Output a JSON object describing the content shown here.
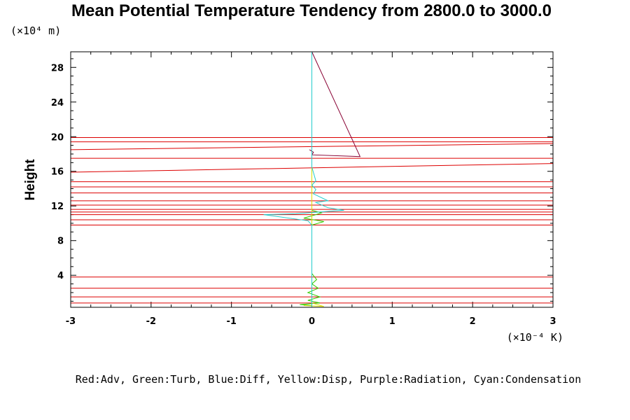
{
  "chart_data": {
    "type": "line",
    "title": "Mean Potential Temperature Tendency from 2800.0 to 3000.0",
    "ylabel": "Height",
    "xunit": "(×10⁻⁴ K)",
    "yunit": "(×10⁴ m)",
    "xlim": [
      -3,
      3
    ],
    "ylim": [
      0.3,
      29.8
    ],
    "xticks": [
      "-3",
      "-2",
      "-1",
      "0",
      "1",
      "2",
      "3"
    ],
    "yticks": [
      "4",
      "8",
      "12",
      "16",
      "20",
      "24",
      "28"
    ],
    "grid": false,
    "legend_text": "Red:Adv, Green:Turb, Blue:Diff, Yellow:Disp, Purple:Radiation, Cyan:Condensation",
    "colors": {
      "red": "#dd0000",
      "green": "#33cc00",
      "blue": "#0000cc",
      "yellow": "#dddd00",
      "purple": "#880033",
      "cyan": "#22cccc"
    },
    "series": [
      {
        "name": "Adv",
        "color": "red",
        "points": [
          [
            -3,
            0.8
          ],
          [
            3,
            0.8
          ],
          [
            -3,
            1.5
          ],
          [
            3,
            1.5
          ],
          [
            -3,
            2.5
          ],
          [
            3,
            2.5
          ],
          [
            -3,
            3.8
          ],
          [
            3,
            3.8
          ],
          [
            -3,
            9.8
          ],
          [
            3,
            9.8
          ],
          [
            -3,
            10.4
          ],
          [
            3,
            10.4
          ],
          [
            -3,
            11.0
          ],
          [
            3,
            11.0
          ],
          [
            -3,
            11.3
          ],
          [
            3,
            11.3
          ],
          [
            -3,
            11.6
          ],
          [
            3,
            11.6
          ],
          [
            -3,
            12.1
          ],
          [
            3,
            12.1
          ],
          [
            -3,
            12.6
          ],
          [
            3,
            12.6
          ],
          [
            -3,
            13.5
          ],
          [
            3,
            13.5
          ],
          [
            -3,
            14.2
          ],
          [
            3,
            14.2
          ],
          [
            -3,
            14.8
          ],
          [
            3,
            14.8
          ],
          [
            -3,
            15.9
          ],
          [
            3,
            16.9
          ],
          [
            -3,
            17.5
          ],
          [
            3,
            17.5
          ],
          [
            -3,
            18.5
          ],
          [
            3,
            19.2
          ],
          [
            -3,
            19.4
          ],
          [
            3,
            19.4
          ],
          [
            -3,
            19.9
          ],
          [
            3,
            19.9
          ]
        ]
      },
      {
        "name": "Turb",
        "color": "green",
        "points": [
          [
            0,
            0.5
          ],
          [
            -0.15,
            0.6
          ],
          [
            0.1,
            0.8
          ],
          [
            -0.05,
            1.1
          ],
          [
            0.1,
            1.5
          ],
          [
            -0.05,
            2.0
          ],
          [
            0.08,
            2.5
          ],
          [
            0,
            3.0
          ],
          [
            0.06,
            3.5
          ],
          [
            0,
            4.2
          ],
          [
            0,
            9.8
          ],
          [
            0.15,
            10.2
          ],
          [
            -0.1,
            10.6
          ],
          [
            0.05,
            11.0
          ],
          [
            0.12,
            11.2
          ],
          [
            0,
            11.5
          ],
          [
            0,
            29.8
          ]
        ]
      },
      {
        "name": "Diff",
        "color": "blue",
        "points": []
      },
      {
        "name": "Disp",
        "color": "yellow",
        "points": [
          [
            -0.1,
            0.5
          ],
          [
            0.15,
            0.4
          ],
          [
            0,
            0.8
          ],
          [
            0,
            29.8
          ]
        ]
      },
      {
        "name": "Radiation",
        "color": "purple",
        "points": [
          [
            -0.03,
            18.5
          ],
          [
            0.02,
            18.2
          ],
          [
            0,
            17.9
          ],
          [
            0.6,
            17.7
          ],
          [
            0,
            29.8
          ]
        ]
      },
      {
        "name": "Condensation",
        "color": "cyan",
        "points": [
          [
            0,
            0.3
          ],
          [
            0,
            9.8
          ],
          [
            -0.05,
            10.3
          ],
          [
            -0.6,
            11.0
          ],
          [
            -0.2,
            11.1
          ],
          [
            0.4,
            11.5
          ],
          [
            0.2,
            11.8
          ],
          [
            0.05,
            12.4
          ],
          [
            0.2,
            12.6
          ],
          [
            0.02,
            13.4
          ],
          [
            0.05,
            13.9
          ],
          [
            0,
            14.4
          ],
          [
            0.05,
            14.9
          ],
          [
            0,
            16.5
          ],
          [
            0,
            29.8
          ]
        ]
      }
    ]
  }
}
